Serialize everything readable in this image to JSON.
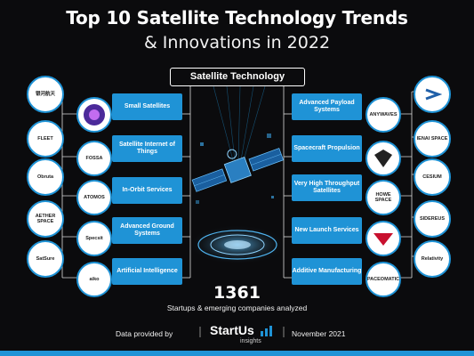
{
  "title_line1": "Top 10 Satellite Technology Trends",
  "title_line2": "& Innovations in 2022",
  "center_label": "Satellite Technology",
  "trends_left": [
    "Small Satellites",
    "Satellite Internet of Things",
    "In-Orbit Services",
    "Advanced Ground Systems",
    "Artificial Intelligence"
  ],
  "trends_right": [
    "Advanced Payload Systems",
    "Spacecraft Propulsion",
    "Very High Throughput Satellites",
    "New Launch Services",
    "Additive Manufacturing"
  ],
  "logos_outer_left": [
    "银河航天",
    "FLEET",
    "Obruta",
    "AETHER SPACE",
    "SatSure"
  ],
  "logos_inner_left": [
    "",
    "FOSSA",
    "ATOMOS",
    "Specsit",
    "aiko"
  ],
  "logos_inner_right": [
    "ANYWAVES",
    "",
    "HOWE SPACE",
    "",
    "SPACEOMATICS"
  ],
  "logos_outer_right": [
    "",
    "IENAI SPACE",
    "CESIUM",
    "SIDEREUS",
    "Relativity"
  ],
  "startup_count": "1361",
  "startup_caption": "Startups & emerging companies analyzed",
  "footer_provided": "Data provided by",
  "footer_brand": "StartUs",
  "footer_brand_sub": "insights",
  "footer_date": "November 2021",
  "colors": {
    "accent": "#1f93d6",
    "background": "#0b0b0d"
  }
}
